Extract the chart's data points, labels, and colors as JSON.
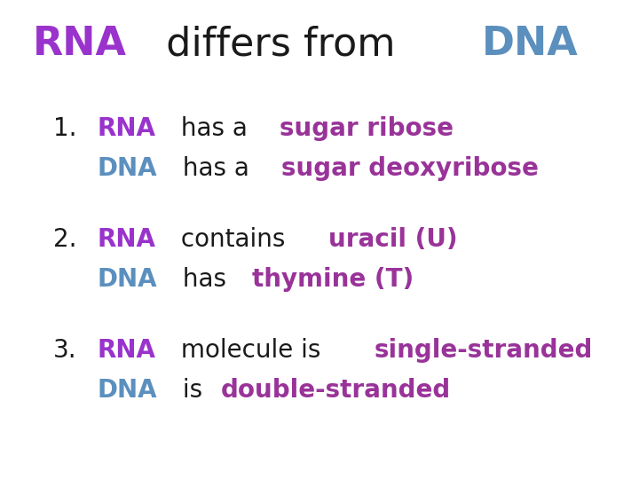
{
  "background_color": "#ffffff",
  "title_parts": [
    {
      "text": "RNA",
      "color": "#9933cc",
      "bold": true
    },
    {
      "text": " differs from ",
      "color": "#1a1a1a",
      "bold": false
    },
    {
      "text": "DNA",
      "color": "#5b8fbe",
      "bold": true
    }
  ],
  "title_fontsize": 32,
  "content_fontsize": 20,
  "black_color": "#1a1a1a",
  "items": [
    {
      "number": "1.",
      "line1": [
        {
          "text": "RNA",
          "color": "#9933cc",
          "bold": true
        },
        {
          "text": " has a ",
          "color": "#1a1a1a",
          "bold": false
        },
        {
          "text": "sugar ribose",
          "color": "#993399",
          "bold": true
        }
      ],
      "line2": [
        {
          "text": "DNA",
          "color": "#5b8fbe",
          "bold": true
        },
        {
          "text": " has a ",
          "color": "#1a1a1a",
          "bold": false
        },
        {
          "text": "sugar deoxyribose",
          "color": "#993399",
          "bold": true
        }
      ]
    },
    {
      "number": "2.",
      "line1": [
        {
          "text": "RNA",
          "color": "#9933cc",
          "bold": true
        },
        {
          "text": " contains ",
          "color": "#1a1a1a",
          "bold": false
        },
        {
          "text": "uracil (U)",
          "color": "#993399",
          "bold": true
        }
      ],
      "line2": [
        {
          "text": "DNA",
          "color": "#5b8fbe",
          "bold": true
        },
        {
          "text": " has ",
          "color": "#1a1a1a",
          "bold": false
        },
        {
          "text": "thymine (T)",
          "color": "#993399",
          "bold": true
        }
      ]
    },
    {
      "number": "3.",
      "line1": [
        {
          "text": "RNA",
          "color": "#9933cc",
          "bold": true
        },
        {
          "text": " molecule is ",
          "color": "#1a1a1a",
          "bold": false
        },
        {
          "text": "single-stranded",
          "color": "#993399",
          "bold": true
        }
      ],
      "line2": [
        {
          "text": "DNA",
          "color": "#5b8fbe",
          "bold": true
        },
        {
          "text": " is ",
          "color": "#1a1a1a",
          "bold": false
        },
        {
          "text": "double-stranded",
          "color": "#993399",
          "bold": true
        }
      ]
    }
  ]
}
